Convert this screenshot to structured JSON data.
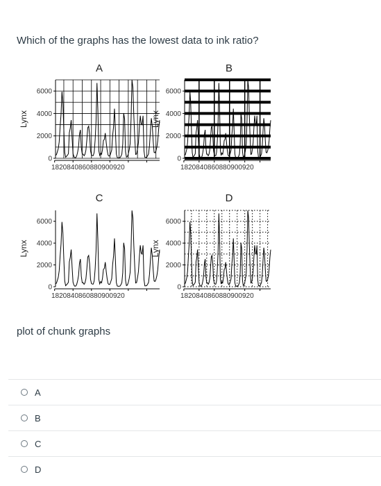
{
  "question": "Which of the graphs has the lowest data to ink ratio?",
  "caption": "plot of chunk graphs",
  "choices": [
    {
      "label": "A"
    },
    {
      "label": "B"
    },
    {
      "label": "C"
    },
    {
      "label": "D"
    }
  ],
  "chart_data": [
    {
      "type": "line",
      "title": "A",
      "ylabel": "Lynx",
      "xlabel": "",
      "x_tick_labels": [
        "1820",
        "840",
        "860",
        "880",
        "900",
        "920"
      ],
      "y_tick_labels": [
        "0",
        "2000",
        "4000",
        "6000"
      ],
      "ylim": [
        0,
        7000
      ],
      "xlim": [
        1821,
        1934
      ],
      "style": "thin black major and minor gridlines"
    },
    {
      "type": "line",
      "title": "B",
      "ylabel": "Lynx",
      "xlabel": "",
      "x_tick_labels": [
        "1820",
        "840",
        "860",
        "880",
        "900",
        "920"
      ],
      "y_tick_labels": [
        "0",
        "2000",
        "4000",
        "6000"
      ],
      "ylim": [
        0,
        7000
      ],
      "xlim": [
        1821,
        1934
      ],
      "style": "heavy black horizontal gridlines"
    },
    {
      "type": "line",
      "title": "C",
      "ylabel": "Lynx",
      "xlabel": "",
      "x_tick_labels": [
        "1820",
        "840",
        "860",
        "880",
        "900",
        "920"
      ],
      "y_tick_labels": [
        "0",
        "2000",
        "4000",
        "6000"
      ],
      "ylim": [
        0,
        7000
      ],
      "xlim": [
        1821,
        1934
      ],
      "style": "no gridlines"
    },
    {
      "type": "line",
      "title": "D",
      "ylabel": "Lynx",
      "xlabel": "",
      "x_tick_labels": [
        "1820",
        "840",
        "860",
        "880",
        "900",
        "920"
      ],
      "y_tick_labels": [
        "0",
        "2000",
        "4000",
        "6000"
      ],
      "ylim": [
        0,
        7000
      ],
      "xlim": [
        1821,
        1934
      ],
      "style": "dotted gridlines"
    }
  ],
  "series_x_start": 1821,
  "series_values": [
    269,
    321,
    585,
    871,
    1475,
    2821,
    3928,
    5943,
    4950,
    2577,
    523,
    98,
    184,
    279,
    409,
    2285,
    2685,
    3409,
    1824,
    409,
    151,
    45,
    68,
    213,
    546,
    1033,
    2129,
    2536,
    957,
    361,
    377,
    225,
    360,
    731,
    1638,
    2725,
    2871,
    2119,
    684,
    299,
    236,
    245,
    552,
    1623,
    3311,
    6721,
    4254,
    687,
    255,
    473,
    358,
    784,
    1594,
    1676,
    2251,
    1426,
    756,
    299,
    201,
    229,
    469,
    736,
    2042,
    2811,
    4431,
    2511,
    389,
    73,
    39,
    49,
    59,
    188,
    377,
    1292,
    4031,
    3495,
    587,
    105,
    153,
    387,
    758,
    1307,
    3465,
    6991,
    6313,
    3794,
    1836,
    345,
    382,
    808,
    1388,
    2713,
    3800,
    3091,
    2985,
    3790,
    674,
    81,
    80,
    108,
    229,
    399,
    1132,
    2432,
    3574,
    2935,
    1537,
    529,
    485,
    662,
    1000,
    1590,
    2657,
    3396
  ]
}
